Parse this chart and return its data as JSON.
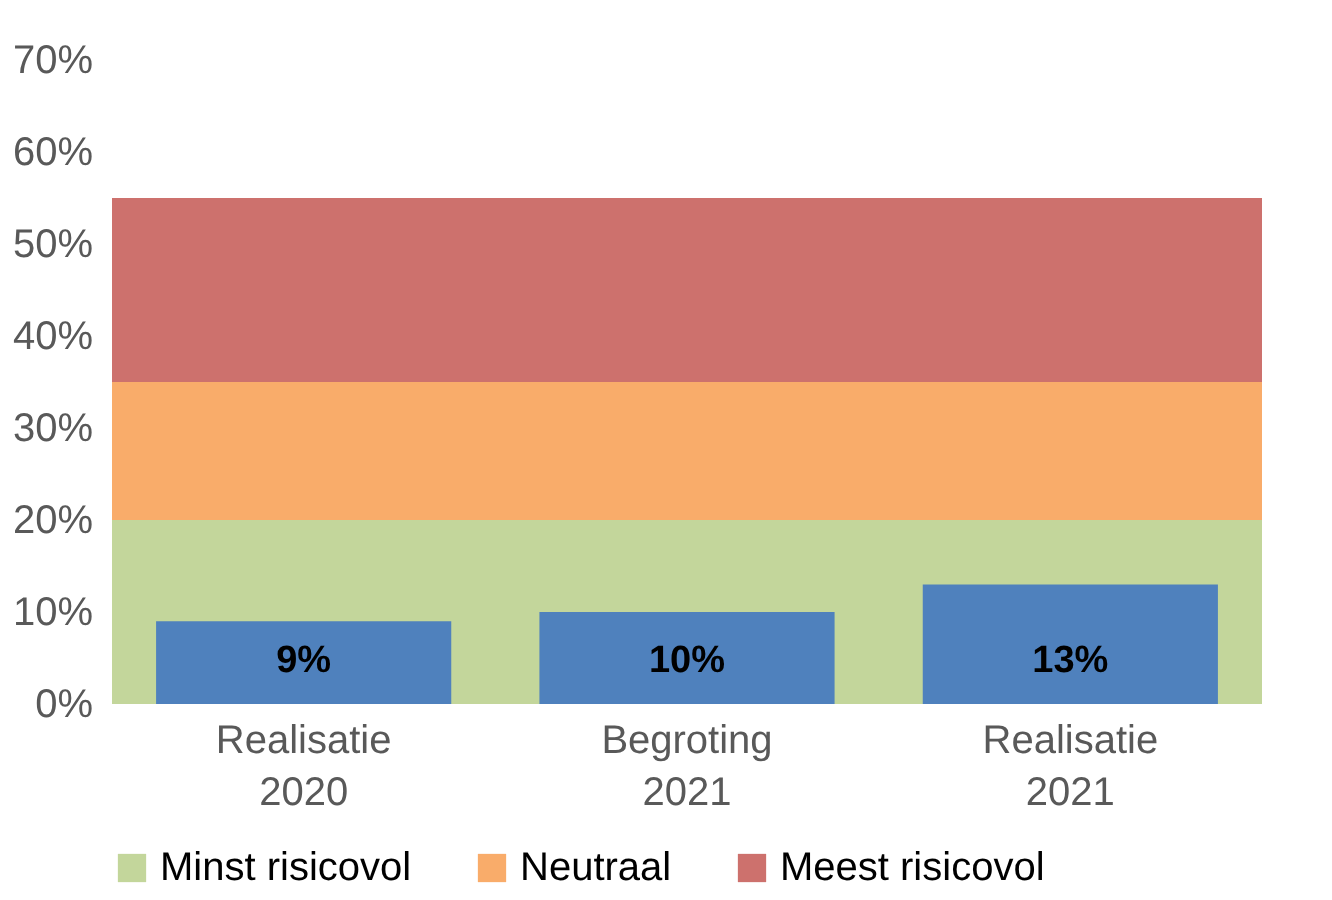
{
  "chart_data": {
    "type": "bar",
    "categories": [
      "Realisatie 2020",
      "Begroting 2021",
      "Realisatie 2021"
    ],
    "values": [
      9,
      10,
      13
    ],
    "color": "#4f81bd",
    "value_labels": [
      "9%",
      "10%",
      "13%"
    ],
    "ylim": [
      0,
      70
    ],
    "yticks": [
      {
        "value": 0,
        "label": "0%"
      },
      {
        "value": 10,
        "label": "10%"
      },
      {
        "value": 20,
        "label": "20%"
      },
      {
        "value": 30,
        "label": "30%"
      },
      {
        "value": 40,
        "label": "40%"
      },
      {
        "value": 50,
        "label": "50%"
      },
      {
        "value": 60,
        "label": "60%"
      },
      {
        "value": 70,
        "label": "70%"
      }
    ],
    "bands": [
      {
        "axis": "y",
        "from": 0,
        "to": 20,
        "label": "Minst risicovol",
        "color": "#c3d69b"
      },
      {
        "axis": "y",
        "from": 20,
        "to": 35,
        "label": "Neutraal",
        "color": "#f9ac6a"
      },
      {
        "axis": "y",
        "from": 35,
        "to": 55,
        "label": "Meest risicovol",
        "color": "#cd716d"
      }
    ],
    "grid": false,
    "legend": "bottom"
  }
}
